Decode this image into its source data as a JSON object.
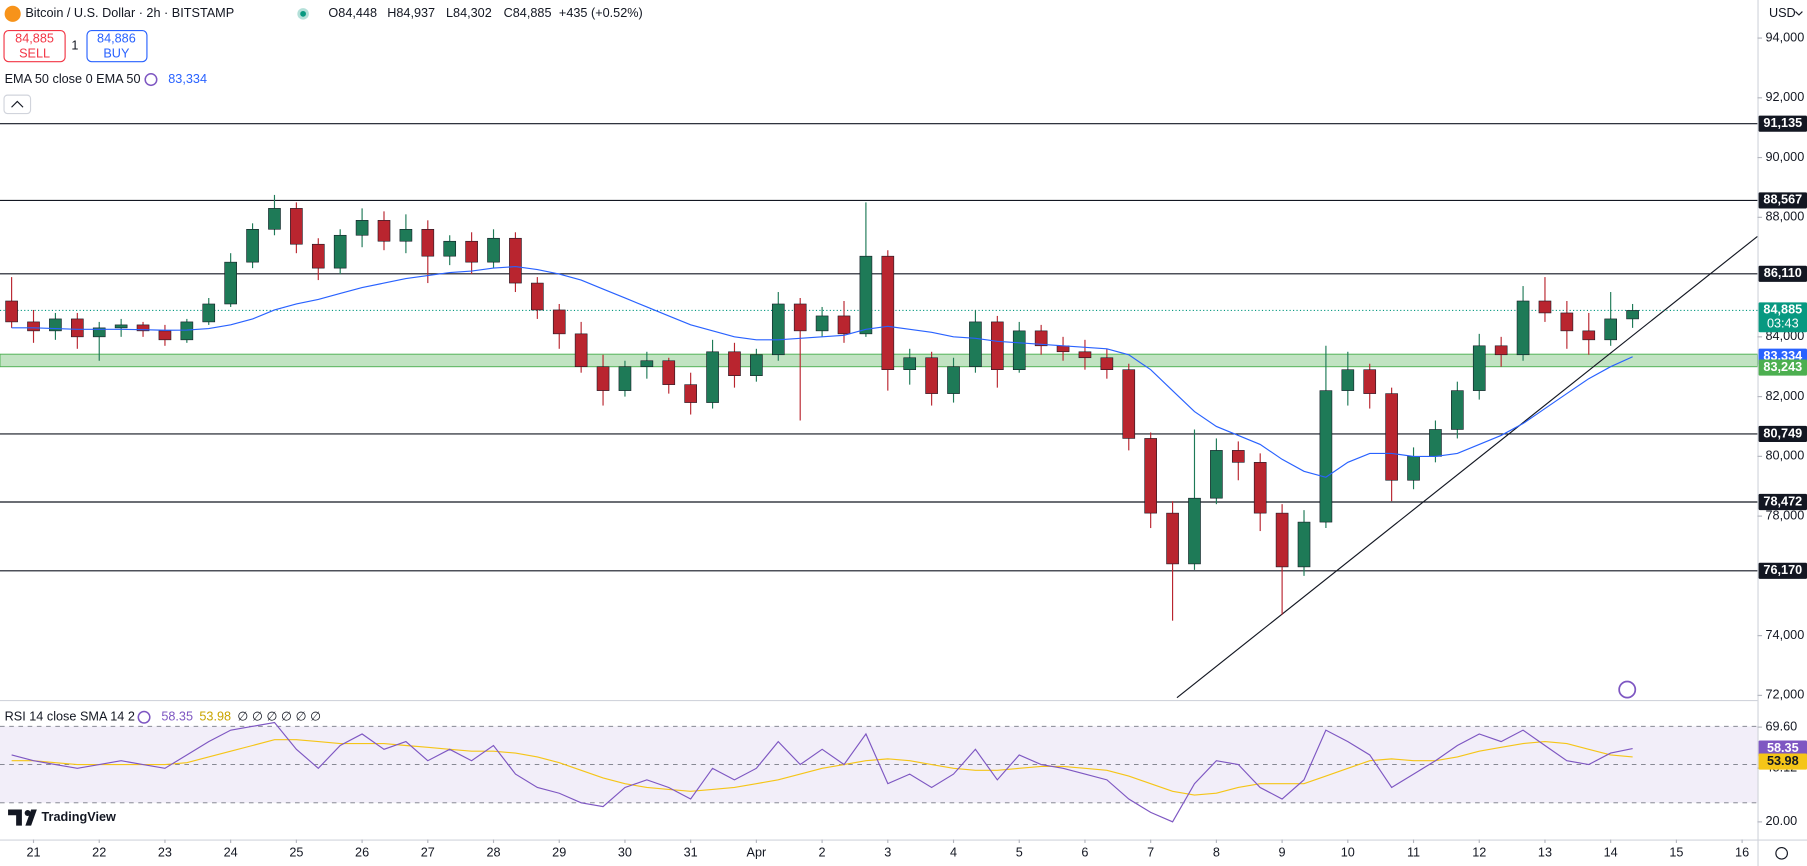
{
  "header": {
    "ohlc": [
      "O84,448",
      "H84,937",
      "L84,302",
      "C84,885"
    ],
    "change": "+435 (+0.52%)",
    "sell_price": "84,885",
    "sell": "SELL",
    "quantity": "1",
    "buy_price": "84,886",
    "buy": "BUY",
    "currency": "USD",
    "logo": "TradingView",
    "rsi_placeholders": "∅ ∅ ∅ ∅ ∅ ∅"
  },
  "chart_data": {
    "type": "candlestick",
    "title": "Bitcoin / U.S. Dollar · 2h · BITSTAMP",
    "xlim": [
      -0.53,
      79.7
    ],
    "xticks": [
      {
        "value": 1,
        "label": "21"
      },
      {
        "value": 4,
        "label": "22"
      },
      {
        "value": 7,
        "label": "23"
      },
      {
        "value": 10,
        "label": "24"
      },
      {
        "value": 13,
        "label": "25"
      },
      {
        "value": 16,
        "label": "26"
      },
      {
        "value": 19,
        "label": "27"
      },
      {
        "value": 22,
        "label": "28"
      },
      {
        "value": 25,
        "label": "29"
      },
      {
        "value": 28,
        "label": "30"
      },
      {
        "value": 31,
        "label": "31"
      },
      {
        "value": 34,
        "label": "Apr"
      },
      {
        "value": 37,
        "label": "2"
      },
      {
        "value": 40,
        "label": "3"
      },
      {
        "value": 43,
        "label": "4"
      },
      {
        "value": 46,
        "label": "5"
      },
      {
        "value": 49,
        "label": "6"
      },
      {
        "value": 52,
        "label": "7"
      },
      {
        "value": 55,
        "label": "8"
      },
      {
        "value": 58,
        "label": "9"
      },
      {
        "value": 61,
        "label": "10"
      },
      {
        "value": 64,
        "label": "11"
      },
      {
        "value": 67,
        "label": "12"
      },
      {
        "value": 70,
        "label": "13"
      },
      {
        "value": 73,
        "label": "14"
      },
      {
        "value": 76,
        "label": "15"
      },
      {
        "value": 79,
        "label": "16"
      }
    ],
    "ylim": [
      71847,
      95274
    ],
    "yticks": [
      {
        "value": 94000,
        "label": "94,000"
      },
      {
        "value": 92000,
        "label": "92,000"
      },
      {
        "value": 90000,
        "label": "90,000"
      },
      {
        "value": 88000,
        "label": "88,000"
      },
      {
        "value": 84000,
        "label": "84,000"
      },
      {
        "value": 82000,
        "label": "82,000"
      },
      {
        "value": 80000,
        "label": "80,000"
      },
      {
        "value": 78000,
        "label": "78,000"
      },
      {
        "value": 74000,
        "label": "74,000"
      },
      {
        "value": 72000,
        "label": "72,000"
      }
    ],
    "up_color": "#1e7a57",
    "down_color": "#b9252f",
    "open": [
      85200,
      84500,
      84200,
      84600,
      84000,
      84300,
      84400,
      84200,
      83900,
      84500,
      85100,
      86500,
      87600,
      88300,
      87100,
      86300,
      87400,
      87900,
      87200,
      87600,
      86700,
      87200,
      86500,
      87300,
      85800,
      84900,
      84100,
      83000,
      82200,
      83000,
      83200,
      82400,
      81800,
      83500,
      82700,
      83400,
      85100,
      84200,
      84700,
      84100,
      86700,
      82900,
      83300,
      82100,
      83000,
      84500,
      82900,
      84200,
      83700,
      83500,
      83300,
      82900,
      80600,
      78100,
      76400,
      78600,
      80200,
      79800,
      78100,
      76300,
      77800,
      82200,
      82900,
      82100,
      79200,
      80000,
      80900,
      82200,
      83700,
      83400,
      85200,
      84800,
      84200,
      83900,
      84600
    ],
    "high": [
      86000,
      84900,
      84800,
      84800,
      84500,
      84600,
      84500,
      84400,
      84600,
      85300,
      86800,
      87800,
      88750,
      88500,
      87300,
      87600,
      88300,
      88200,
      88100,
      87900,
      87400,
      87500,
      87600,
      87500,
      86000,
      85100,
      84500,
      83400,
      83200,
      83500,
      83300,
      82800,
      83900,
      83800,
      83600,
      85500,
      85300,
      85000,
      85200,
      88500,
      86900,
      83600,
      83500,
      83300,
      84900,
      84700,
      84500,
      84400,
      84000,
      83900,
      83600,
      83100,
      80800,
      78500,
      80900,
      80600,
      80500,
      80100,
      78400,
      78200,
      83700,
      83500,
      83100,
      82300,
      80300,
      81200,
      82500,
      84100,
      84000,
      85700,
      86000,
      85200,
      84800,
      85500,
      85100
    ],
    "low": [
      84300,
      83800,
      83900,
      83600,
      83200,
      84000,
      84000,
      83700,
      83800,
      84400,
      85000,
      86300,
      87400,
      86800,
      85900,
      86100,
      87000,
      86900,
      86800,
      85800,
      86400,
      86100,
      86300,
      85500,
      84600,
      83600,
      82800,
      81700,
      82000,
      82600,
      82100,
      81400,
      81600,
      82300,
      82500,
      83200,
      81200,
      84000,
      83800,
      84000,
      82200,
      82400,
      81700,
      81800,
      82800,
      82300,
      82800,
      83400,
      83200,
      82900,
      82600,
      80200,
      77600,
      74500,
      76200,
      78400,
      79200,
      77500,
      74700,
      76000,
      77600,
      81700,
      81600,
      78500,
      78900,
      79800,
      80600,
      81900,
      83000,
      83200,
      84500,
      83600,
      83400,
      83700,
      84300
    ],
    "close": [
      84500,
      84200,
      84600,
      84000,
      84300,
      84400,
      84200,
      83900,
      84500,
      85100,
      86500,
      87600,
      88300,
      87100,
      86300,
      87400,
      87900,
      87200,
      87600,
      86700,
      87200,
      86500,
      87300,
      85800,
      84900,
      84100,
      83000,
      82200,
      83000,
      83200,
      82400,
      81800,
      83500,
      82700,
      83400,
      85100,
      84200,
      84700,
      84100,
      86700,
      82900,
      83300,
      82100,
      83000,
      84500,
      82900,
      84200,
      83700,
      83500,
      83300,
      82900,
      80600,
      78100,
      76400,
      78600,
      80200,
      79800,
      78100,
      76300,
      77800,
      82200,
      82900,
      82100,
      79200,
      80000,
      80900,
      82200,
      83700,
      83400,
      85200,
      84800,
      84200,
      83900,
      84600,
      84885
    ],
    "close_label": "84,885",
    "countdown": "03:43",
    "price_color": "#089981",
    "levels": [
      {
        "value": 91135,
        "label": "91,135"
      },
      {
        "value": 88567,
        "label": "88,567"
      },
      {
        "value": 86110,
        "label": "86,110"
      },
      {
        "value": 80749,
        "label": "80,749"
      },
      {
        "value": 78472,
        "label": "78,472"
      },
      {
        "value": 76170,
        "label": "76,170"
      }
    ],
    "zone": [
      83000,
      83420
    ],
    "zone_color": "#4caf50",
    "zone_label": {
      "value": 83243,
      "label": "83,243"
    },
    "trendline": {
      "x": [
        53.2,
        79.7
      ],
      "y": [
        71924,
        87362
      ]
    },
    "ema": {
      "name": "EMA 50 close 0 EMA 50",
      "color": "#2962ff",
      "last_label": "83,334",
      "values": [
        84300,
        84300,
        84280,
        84250,
        84250,
        84250,
        84240,
        84220,
        84230,
        84280,
        84400,
        84600,
        84900,
        85100,
        85250,
        85450,
        85650,
        85800,
        85950,
        86050,
        86150,
        86200,
        86300,
        86350,
        86250,
        86100,
        85900,
        85600,
        85300,
        85000,
        84700,
        84400,
        84200,
        84000,
        83900,
        83900,
        83950,
        84000,
        84050,
        84250,
        84350,
        84250,
        84150,
        84000,
        83950,
        83850,
        83800,
        83750,
        83700,
        83650,
        83600,
        83400,
        82900,
        82200,
        81500,
        81000,
        80700,
        80400,
        79900,
        79500,
        79300,
        79800,
        80100,
        80100,
        80000,
        80000,
        80100,
        80400,
        80700,
        81100,
        81600,
        82100,
        82600,
        83000,
        83334
      ]
    },
    "rsi": {
      "name": "RSI 14 close SMA 14 2",
      "color": "#7e57c2",
      "last_label": "58.35",
      "ylim": [
        12,
        82
      ],
      "yticks": [
        {
          "value": 69.6,
          "label": "69.60"
        },
        {
          "value": 48.12,
          "label": "48.12"
        },
        {
          "value": 20,
          "label": "20.00"
        }
      ],
      "bands": [
        30,
        50,
        70
      ],
      "values": [
        55,
        52,
        50,
        48,
        50,
        52,
        50,
        48,
        55,
        62,
        68,
        70,
        72,
        58,
        48,
        60,
        66,
        58,
        62,
        52,
        58,
        52,
        60,
        45,
        38,
        35,
        30,
        28,
        38,
        42,
        38,
        32,
        48,
        42,
        48,
        62,
        50,
        58,
        50,
        66,
        40,
        45,
        38,
        45,
        58,
        42,
        55,
        50,
        48,
        45,
        42,
        32,
        25,
        20,
        40,
        52,
        50,
        38,
        32,
        42,
        68,
        62,
        55,
        38,
        45,
        52,
        60,
        66,
        62,
        68,
        60,
        52,
        50,
        56,
        58.35
      ],
      "sma": {
        "color": "#f5c518",
        "last_label": "53.98",
        "values": [
          52,
          52,
          51,
          50,
          50,
          50,
          50,
          50,
          51,
          54,
          57,
          60,
          63,
          63,
          62,
          61,
          61,
          61,
          60,
          59,
          58,
          57,
          57,
          56,
          54,
          51,
          47,
          43,
          40,
          38,
          37,
          36,
          37,
          38,
          40,
          42,
          45,
          48,
          50,
          52,
          53,
          52,
          50,
          48,
          47,
          47,
          48,
          49,
          49,
          48,
          47,
          44,
          40,
          36,
          34,
          35,
          38,
          40,
          40,
          40,
          44,
          48,
          52,
          53,
          52,
          52,
          54,
          57,
          59,
          61,
          62,
          61,
          58,
          55,
          53.98
        ]
      }
    }
  }
}
